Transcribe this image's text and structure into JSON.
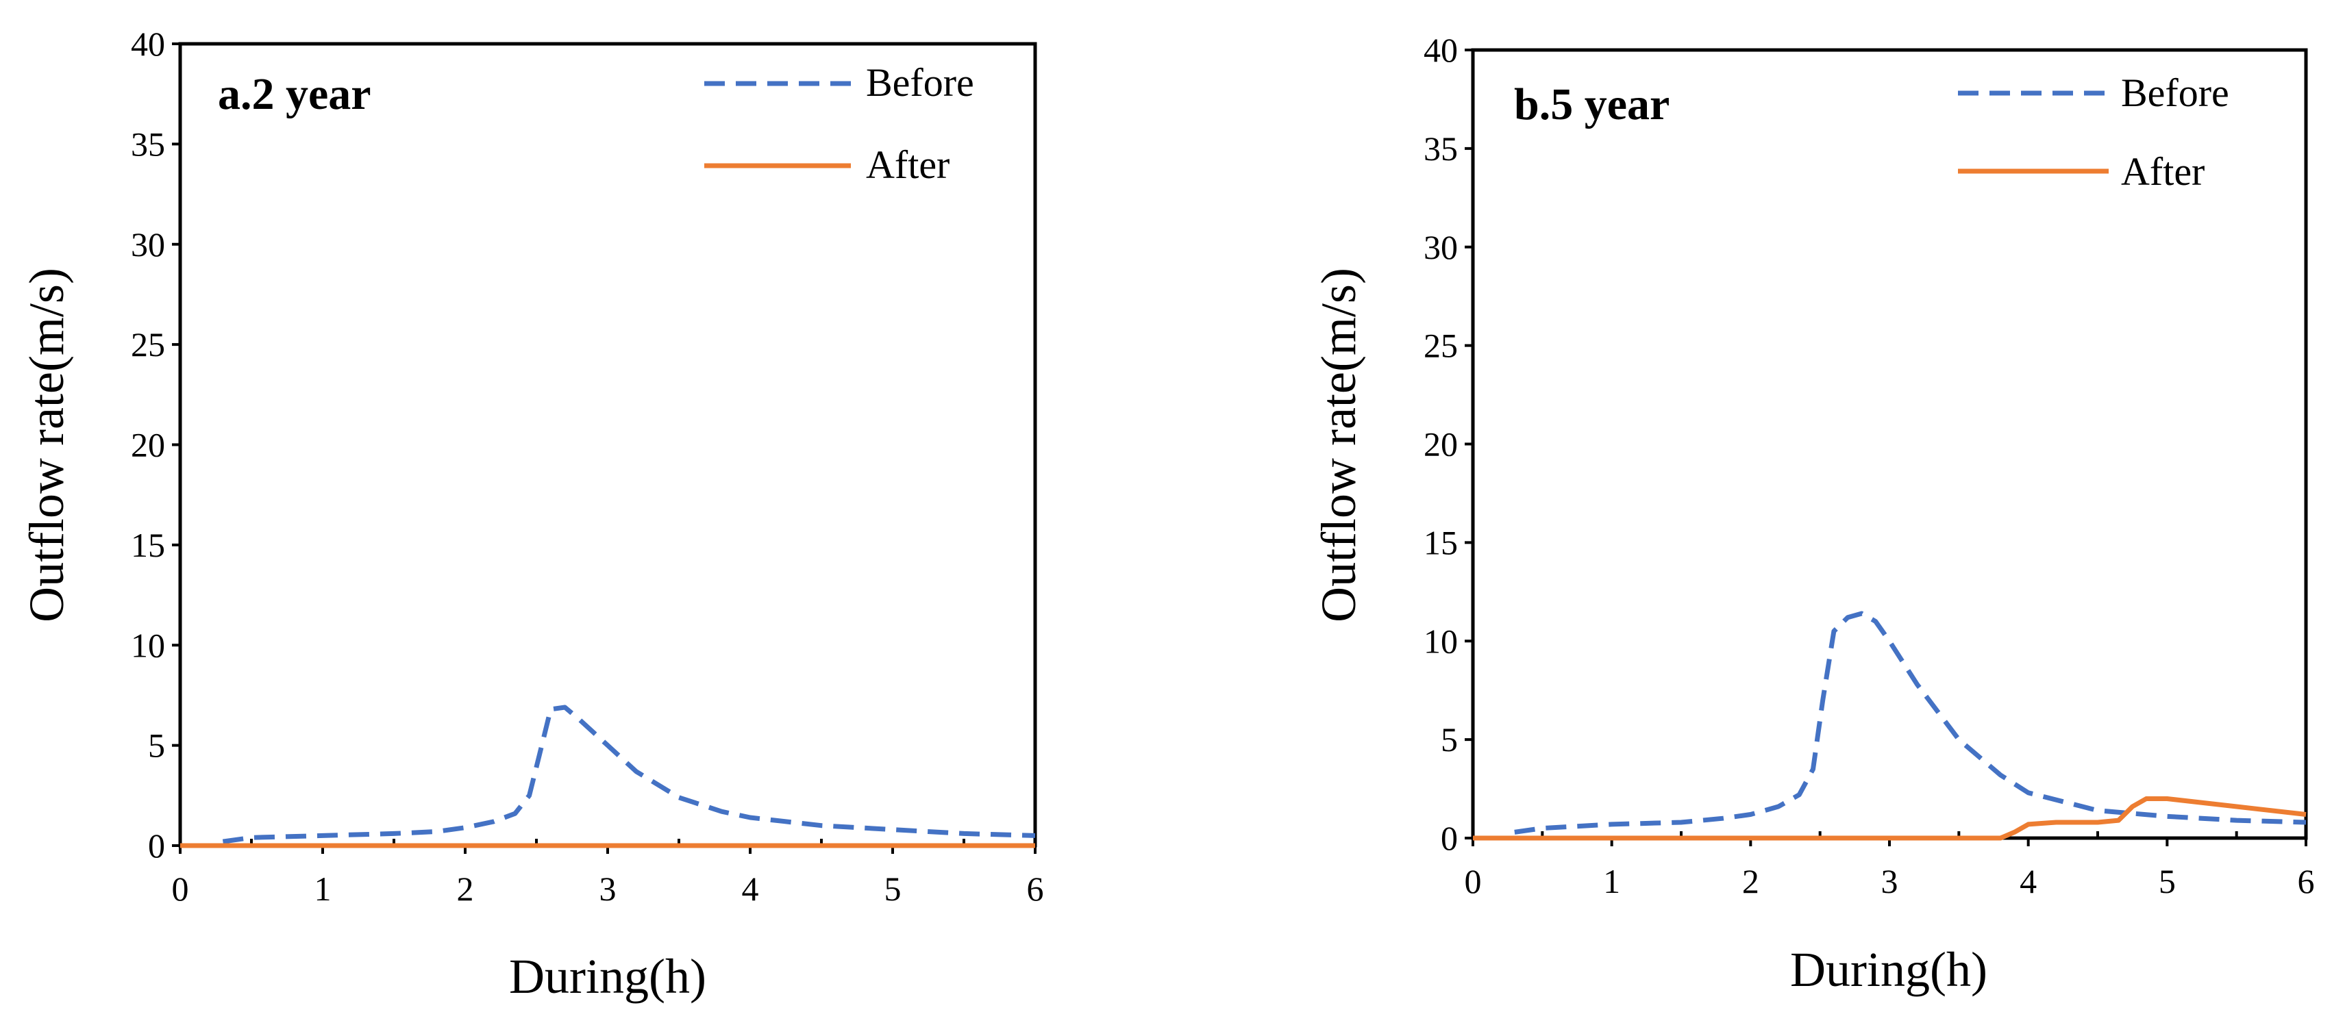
{
  "chart_data": [
    {
      "type": "line",
      "title": "a.2 year",
      "xlabel": "During(h)",
      "ylabel": "Outflow rate(m/s)",
      "xlim": [
        0,
        6
      ],
      "ylim": [
        0,
        40
      ],
      "xticks": [
        "0",
        "1",
        "2",
        "3",
        "4",
        "5",
        "6"
      ],
      "yticks": [
        "0",
        "5",
        "10",
        "15",
        "20",
        "25",
        "30",
        "35",
        "40"
      ],
      "legend_position": "top-right",
      "series": [
        {
          "name": "Before",
          "style": "dashed",
          "color": "#4472C4",
          "x": [
            0.3,
            0.5,
            1.0,
            1.5,
            1.8,
            2.0,
            2.2,
            2.35,
            2.45,
            2.52,
            2.6,
            2.7,
            2.8,
            3.0,
            3.2,
            3.5,
            3.8,
            4.0,
            4.5,
            5.0,
            5.5,
            6.0
          ],
          "y": [
            0.2,
            0.4,
            0.5,
            0.6,
            0.7,
            0.9,
            1.2,
            1.6,
            2.5,
            4.5,
            6.8,
            6.9,
            6.3,
            5.0,
            3.7,
            2.4,
            1.7,
            1.4,
            1.0,
            0.8,
            0.6,
            0.5
          ]
        },
        {
          "name": "After",
          "style": "solid",
          "color": "#ED7D31",
          "x": [
            0,
            1,
            2,
            3,
            4,
            5,
            6
          ],
          "y": [
            0,
            0,
            0,
            0,
            0,
            0,
            0
          ]
        }
      ]
    },
    {
      "type": "line",
      "title": "b.5 year",
      "xlabel": "During(h)",
      "ylabel": "Outflow rate(m/s)",
      "xlim": [
        0,
        6
      ],
      "ylim": [
        0,
        40
      ],
      "xticks": [
        "0",
        "1",
        "2",
        "3",
        "4",
        "5",
        "6"
      ],
      "yticks": [
        "0",
        "5",
        "10",
        "15",
        "20",
        "25",
        "30",
        "35",
        "40"
      ],
      "legend_position": "top-right",
      "series": [
        {
          "name": "Before",
          "style": "dashed",
          "color": "#4472C4",
          "x": [
            0.3,
            0.5,
            1.0,
            1.5,
            1.8,
            2.0,
            2.2,
            2.35,
            2.45,
            2.52,
            2.6,
            2.7,
            2.8,
            2.9,
            3.0,
            3.2,
            3.5,
            3.8,
            4.0,
            4.5,
            5.0,
            5.5,
            6.0
          ],
          "y": [
            0.3,
            0.5,
            0.7,
            0.8,
            1.0,
            1.2,
            1.6,
            2.2,
            3.5,
            7.0,
            10.5,
            11.2,
            11.4,
            11.0,
            10.0,
            7.8,
            5.0,
            3.2,
            2.3,
            1.4,
            1.1,
            0.9,
            0.8
          ]
        },
        {
          "name": "After",
          "style": "solid",
          "color": "#ED7D31",
          "x": [
            0,
            1,
            2,
            3,
            3.8,
            3.9,
            4.0,
            4.2,
            4.5,
            4.65,
            4.75,
            4.85,
            5.0,
            5.5,
            6.0
          ],
          "y": [
            0,
            0,
            0,
            0,
            0,
            0.3,
            0.7,
            0.8,
            0.8,
            0.9,
            1.6,
            2.0,
            2.0,
            1.6,
            1.2
          ]
        }
      ]
    }
  ]
}
